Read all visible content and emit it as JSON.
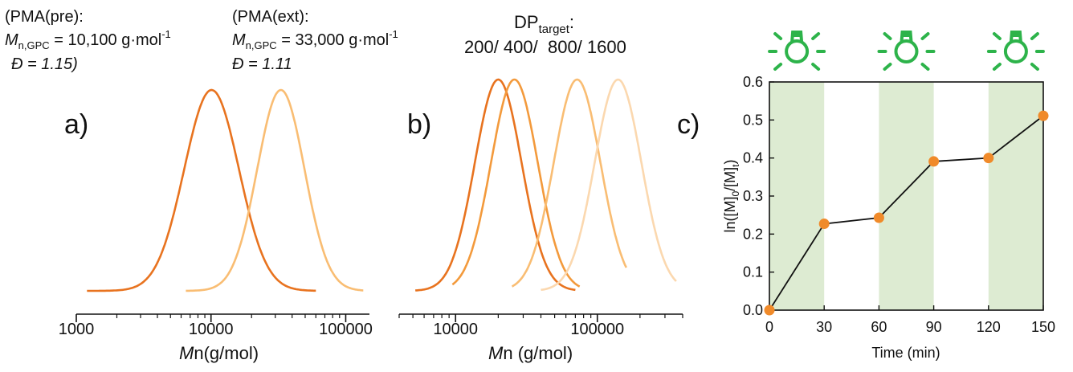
{
  "colors": {
    "dark_orange": "#E8731F",
    "mid_orange": "#F39A3C",
    "light_orange": "#F9BD73",
    "pale_orange": "#FBD8AF",
    "point_orange": "#F08A2A",
    "light_band": "#DDEBD2",
    "bulb_green": "#2DB34A"
  },
  "annotations": {
    "pre": {
      "line1": "(PMA(pre):",
      "m_symbol": "M",
      "m_sub": "n,GPC",
      "m_value": " = 10,100 g·mol",
      "m_sup": "-1",
      "d_line": "Đ = 1.15)"
    },
    "ext": {
      "line1": "(PMA(ext):",
      "m_symbol": "M",
      "m_sub": "n,GPC",
      "m_value": " = 33,000 g·mol",
      "m_sup": "-1",
      "d_line": "Đ = 1.11"
    },
    "dp": {
      "label": "DP",
      "sub": "target",
      "colon": ":",
      "values": "200/ 400/  800/ 1600"
    }
  },
  "panel_labels": {
    "a": "a)",
    "b": "b)",
    "c": "c)"
  },
  "chart_data": [
    {
      "panel": "a)",
      "type": "line",
      "x_scale": "log",
      "xlim": [
        1000,
        150000
      ],
      "x_ticks": [
        1000,
        10000,
        100000
      ],
      "x_tick_labels": [
        "1000",
        "10000",
        "100000"
      ],
      "xlabel_symbol": "M",
      "xlabel_sub": "n",
      "xlabel_rest": "(g/mol)",
      "series": [
        {
          "peak": 10100,
          "dispersity": 1.15,
          "x_range": [
            1200,
            60000
          ],
          "color": "dark_orange"
        },
        {
          "peak": 33000,
          "dispersity": 1.11,
          "x_range": [
            6500,
            135000
          ],
          "color": "light_orange"
        }
      ]
    },
    {
      "panel": "b)",
      "type": "line",
      "x_scale": "log",
      "xlim": [
        4000,
        400000
      ],
      "x_ticks": [
        10000,
        100000
      ],
      "x_tick_labels": [
        "10000",
        "100000"
      ],
      "xlabel_symbol": "M",
      "xlabel_sub": "n",
      "xlabel_rest": " (g/mol)",
      "series": [
        {
          "peak": 20000,
          "x_range": [
            5200,
            70000
          ],
          "color": "dark_orange"
        },
        {
          "peak": 26000,
          "x_range": [
            9500,
            75000
          ],
          "color": "mid_orange"
        },
        {
          "peak": 72000,
          "x_range": [
            25000,
            160000
          ],
          "color": "light_orange"
        },
        {
          "peak": 140000,
          "x_range": [
            40000,
            360000
          ],
          "color": "pale_orange"
        }
      ]
    },
    {
      "panel": "c)",
      "type": "line",
      "xlabel": "Time (min)",
      "ylabel_parts": [
        "ln([M]",
        "0",
        "/[M]",
        "t",
        ")"
      ],
      "xlim": [
        0,
        150
      ],
      "ylim": [
        0,
        0.6
      ],
      "x_ticks": [
        0,
        30,
        60,
        90,
        120,
        150
      ],
      "x_tick_labels": [
        "0",
        "30",
        "60",
        "90",
        "120",
        "150"
      ],
      "y_ticks": [
        0,
        0.1,
        0.2,
        0.3,
        0.4,
        0.5,
        0.6
      ],
      "y_tick_labels": [
        "0.0",
        "0.1",
        "0.2",
        "0.3",
        "0.4",
        "0.5",
        "0.6"
      ],
      "light_on_intervals": [
        [
          0,
          30
        ],
        [
          60,
          90
        ],
        [
          120,
          150
        ]
      ],
      "x": [
        0,
        30,
        60,
        90,
        120,
        150
      ],
      "y": [
        0.0,
        0.227,
        0.243,
        0.391,
        0.4,
        0.511
      ]
    }
  ]
}
